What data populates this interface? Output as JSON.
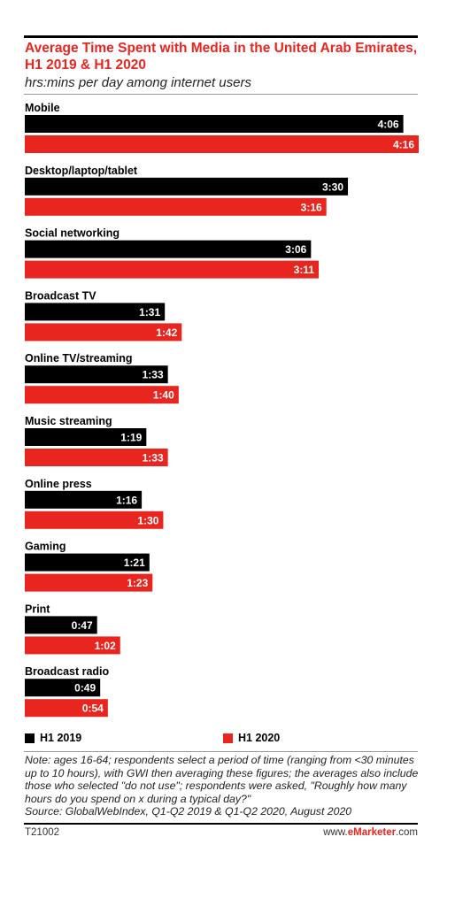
{
  "chart_data": {
    "type": "bar",
    "orientation": "horizontal",
    "title": "Average Time Spent with Media in the United Arab Emirates, H1 2019 & H1 2020",
    "subtitle": "hrs:mins per day among internet users",
    "categories": [
      "Mobile",
      "Desktop/laptop/tablet",
      "Social networking",
      "Broadcast TV",
      "Online TV/streaming",
      "Music streaming",
      "Online press",
      "Gaming",
      "Print",
      "Broadcast radio"
    ],
    "series": [
      {
        "name": "H1 2019",
        "color": "#000000",
        "values_minutes": [
          246,
          210,
          186,
          91,
          93,
          79,
          76,
          81,
          47,
          49
        ],
        "labels": [
          "4:06",
          "3:30",
          "3:06",
          "1:31",
          "1:33",
          "1:19",
          "1:16",
          "1:21",
          "0:47",
          "0:49"
        ]
      },
      {
        "name": "H1 2020",
        "color": "#e8251f",
        "values_minutes": [
          256,
          196,
          191,
          102,
          100,
          93,
          90,
          83,
          62,
          54
        ],
        "labels": [
          "4:16",
          "3:16",
          "3:11",
          "1:42",
          "1:40",
          "1:33",
          "1:30",
          "1:23",
          "1:02",
          "0:54"
        ]
      }
    ],
    "legend_position": "bottom"
  },
  "legend": {
    "h1_2019": "H1 2019",
    "h1_2020": "H1 2020"
  },
  "note": "Note: ages 16-64; respondents select a period of time (ranging from <30 minutes up to 10 hours), with GWI then averaging these figures; the averages also include those who selected \"do not use\"; respondents were asked, \"Roughly how many hours do you spend on x during a typical day?\"",
  "source": "Source: GlobalWebIndex, Q1-Q2 2019 & Q1-Q2 2020, August 2020",
  "footer": {
    "chart_id": "T21002",
    "site_prefix": "www.",
    "site_brand": "eMarketer",
    "site_suffix": ".com"
  }
}
